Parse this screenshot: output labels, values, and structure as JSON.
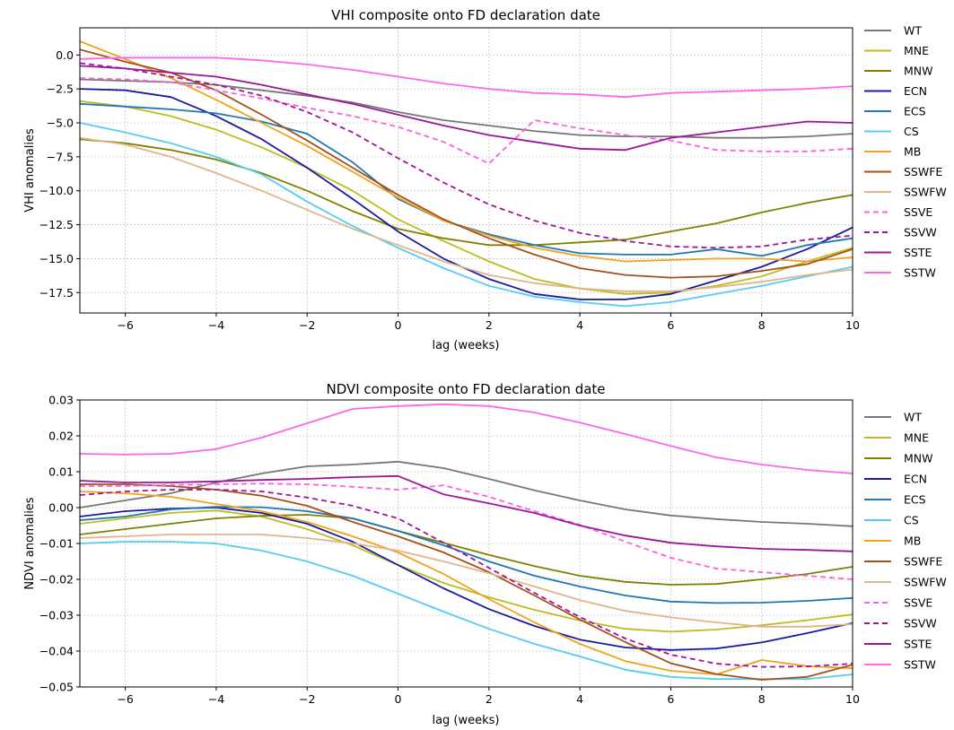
{
  "chart_data": [
    {
      "type": "line",
      "title": "VHI composite onto FD declaration date",
      "xlabel": "lag (weeks)",
      "ylabel": "VHI anomalies",
      "xlim": [
        -7,
        10
      ],
      "ylim": [
        -19,
        2
      ],
      "xticks": [
        -6,
        -4,
        -2,
        0,
        2,
        4,
        6,
        8,
        10
      ],
      "yticks": [
        0.0,
        -2.5,
        -5.0,
        -7.5,
        -10.0,
        -12.5,
        -15.0,
        -17.5
      ],
      "ytick_labels": [
        "0.0",
        "−2.5",
        "−5.0",
        "−7.5",
        "−10.0",
        "−12.5",
        "−15.0",
        "−17.5"
      ],
      "xtick_labels": [
        "−6",
        "−4",
        "−2",
        "0",
        "2",
        "4",
        "6",
        "8",
        "10"
      ],
      "grid": true,
      "legend_position": "outside-right",
      "x": [
        -7,
        -6,
        -5,
        -4,
        -3,
        -2,
        -1,
        0,
        1,
        2,
        3,
        4,
        5,
        6,
        7,
        8,
        9,
        10
      ],
      "series": [
        {
          "name": "WT",
          "color": "#777777",
          "dash": false,
          "values": [
            -1.8,
            -1.9,
            -2.0,
            -2.2,
            -2.6,
            -3.0,
            -3.5,
            -4.2,
            -4.8,
            -5.2,
            -5.6,
            -5.9,
            -6.0,
            -6.0,
            -6.1,
            -6.1,
            -6.0,
            -5.8
          ]
        },
        {
          "name": "MNE",
          "color": "#bcbd22",
          "dash": false,
          "values": [
            -3.4,
            -3.8,
            -4.5,
            -5.5,
            -6.8,
            -8.3,
            -10.0,
            -12.1,
            -13.7,
            -15.2,
            -16.5,
            -17.2,
            -17.6,
            -17.5,
            -17.0,
            -16.3,
            -15.2,
            -14.2
          ]
        },
        {
          "name": "MNW",
          "color": "#808000",
          "dash": false,
          "values": [
            -6.2,
            -6.5,
            -7.0,
            -7.7,
            -8.7,
            -10.0,
            -11.5,
            -12.8,
            -13.5,
            -14.0,
            -14.0,
            -13.8,
            -13.6,
            -13.0,
            -12.4,
            -11.6,
            -10.9,
            -10.3
          ]
        },
        {
          "name": "ECN",
          "color": "#1a1aa0",
          "dash": false,
          "values": [
            -2.5,
            -2.6,
            -3.1,
            -4.5,
            -6.2,
            -8.3,
            -10.6,
            -13.0,
            -15.0,
            -16.5,
            -17.6,
            -18.0,
            -18.0,
            -17.6,
            -16.6,
            -15.6,
            -14.3,
            -12.7
          ]
        },
        {
          "name": "ECS",
          "color": "#1f77b4",
          "dash": false,
          "values": [
            -3.6,
            -3.8,
            -4.0,
            -4.3,
            -4.9,
            -5.8,
            -7.9,
            -10.6,
            -12.2,
            -13.2,
            -14.0,
            -14.6,
            -14.7,
            -14.7,
            -14.3,
            -14.8,
            -14.0,
            -13.5
          ]
        },
        {
          "name": "CS",
          "color": "#56ccf2",
          "dash": false,
          "values": [
            -5.0,
            -5.7,
            -6.5,
            -7.5,
            -8.8,
            -10.8,
            -12.6,
            -14.2,
            -15.7,
            -17.0,
            -17.8,
            -18.2,
            -18.5,
            -18.2,
            -17.6,
            -17.0,
            -16.3,
            -15.6
          ]
        },
        {
          "name": "MB",
          "color": "#f0a21c",
          "dash": false,
          "values": [
            1.0,
            -0.3,
            -1.7,
            -3.3,
            -5.0,
            -6.7,
            -8.6,
            -10.5,
            -12.2,
            -13.3,
            -14.2,
            -14.8,
            -15.2,
            -15.1,
            -15.0,
            -15.0,
            -15.2,
            -14.9
          ]
        },
        {
          "name": "SSWFE",
          "color": "#a64f1a",
          "dash": false,
          "values": [
            0.4,
            -0.5,
            -1.3,
            -2.6,
            -4.4,
            -6.3,
            -8.3,
            -10.3,
            -12.1,
            -13.5,
            -14.7,
            -15.7,
            -16.2,
            -16.4,
            -16.3,
            -15.9,
            -15.4,
            -14.3
          ]
        },
        {
          "name": "SSWFW",
          "color": "#e2b48e",
          "dash": false,
          "values": [
            -6.1,
            -6.6,
            -7.5,
            -8.7,
            -10.0,
            -11.4,
            -12.8,
            -14.0,
            -15.2,
            -16.2,
            -16.8,
            -17.2,
            -17.4,
            -17.4,
            -17.1,
            -16.7,
            -16.2,
            -15.8
          ]
        },
        {
          "name": "SSVE",
          "color": "#ff5ee6",
          "dash": true,
          "values": [
            -1.7,
            -1.8,
            -2.0,
            -2.6,
            -3.2,
            -3.9,
            -4.5,
            -5.3,
            -6.4,
            -8.0,
            -4.8,
            -5.4,
            -5.9,
            -6.3,
            -7.0,
            -7.1,
            -7.1,
            -6.9
          ]
        },
        {
          "name": "SSVW",
          "color": "#a0159a",
          "dash": true,
          "values": [
            -0.6,
            -1.0,
            -1.6,
            -2.2,
            -3.0,
            -4.2,
            -5.7,
            -7.6,
            -9.4,
            -11.0,
            -12.2,
            -13.1,
            -13.7,
            -14.1,
            -14.2,
            -14.1,
            -13.6,
            -13.3
          ]
        },
        {
          "name": "SSTE",
          "color": "#9c159c",
          "dash": false,
          "values": [
            -0.8,
            -1.0,
            -1.3,
            -1.6,
            -2.2,
            -2.9,
            -3.6,
            -4.4,
            -5.2,
            -5.9,
            -6.4,
            -6.9,
            -7.0,
            -6.1,
            -5.7,
            -5.3,
            -4.9,
            -5.0
          ]
        },
        {
          "name": "SSTW",
          "color": "#ff66ee",
          "dash": false,
          "values": [
            -0.3,
            -0.2,
            -0.2,
            -0.2,
            -0.4,
            -0.7,
            -1.1,
            -1.6,
            -2.1,
            -2.5,
            -2.8,
            -2.9,
            -3.1,
            -2.8,
            -2.7,
            -2.6,
            -2.5,
            -2.3
          ]
        }
      ]
    },
    {
      "type": "line",
      "title": "NDVI composite onto FD declaration date",
      "xlabel": "lag (weeks)",
      "ylabel": "NDVI anomalies",
      "xlim": [
        -7,
        10
      ],
      "ylim": [
        -0.05,
        0.03
      ],
      "xticks": [
        -6,
        -4,
        -2,
        0,
        2,
        4,
        6,
        8,
        10
      ],
      "yticks": [
        0.03,
        0.02,
        0.01,
        0.0,
        -0.01,
        -0.02,
        -0.03,
        -0.04,
        -0.05
      ],
      "ytick_labels": [
        "0.03",
        "0.02",
        "0.01",
        "0.00",
        "−0.01",
        "−0.02",
        "−0.03",
        "−0.04",
        "−0.05"
      ],
      "xtick_labels": [
        "−6",
        "−4",
        "−2",
        "0",
        "2",
        "4",
        "6",
        "8",
        "10"
      ],
      "grid": true,
      "legend_position": "outside-right",
      "x": [
        -7,
        -6,
        -5,
        -4,
        -3,
        -2,
        -1,
        0,
        1,
        2,
        3,
        4,
        5,
        6,
        7,
        8,
        9,
        10
      ],
      "series": [
        {
          "name": "WT",
          "color": "#777777",
          "dash": false,
          "values": [
            0.0,
            0.002,
            0.004,
            0.007,
            0.0095,
            0.0115,
            0.012,
            0.0128,
            0.011,
            0.008,
            0.0048,
            0.002,
            -0.0005,
            -0.0022,
            -0.0032,
            -0.004,
            -0.0045,
            -0.0052
          ]
        },
        {
          "name": "MNE",
          "color": "#bcbd22",
          "dash": false,
          "values": [
            -0.0045,
            -0.003,
            -0.0015,
            -0.0008,
            -0.0025,
            -0.006,
            -0.0105,
            -0.016,
            -0.021,
            -0.025,
            -0.0285,
            -0.0315,
            -0.0338,
            -0.0346,
            -0.034,
            -0.0328,
            -0.0314,
            -0.0298
          ]
        },
        {
          "name": "MNW",
          "color": "#808000",
          "dash": false,
          "values": [
            -0.0075,
            -0.006,
            -0.0045,
            -0.003,
            -0.0023,
            -0.002,
            -0.003,
            -0.0065,
            -0.0098,
            -0.0132,
            -0.0163,
            -0.019,
            -0.0207,
            -0.0215,
            -0.0213,
            -0.02,
            -0.0185,
            -0.0165
          ]
        },
        {
          "name": "ECN",
          "color": "#1a1aa0",
          "dash": false,
          "values": [
            -0.0025,
            -0.001,
            -0.0003,
            0.0,
            -0.0015,
            -0.0045,
            -0.0095,
            -0.016,
            -0.0225,
            -0.0283,
            -0.033,
            -0.0368,
            -0.039,
            -0.0397,
            -0.0393,
            -0.0376,
            -0.035,
            -0.0322
          ]
        },
        {
          "name": "ECS",
          "color": "#1f77b4",
          "dash": false,
          "values": [
            -0.0035,
            -0.0025,
            -0.0005,
            0.0002,
            0.0001,
            -0.001,
            -0.003,
            -0.0065,
            -0.0105,
            -0.015,
            -0.019,
            -0.022,
            -0.0245,
            -0.0262,
            -0.0266,
            -0.0265,
            -0.026,
            -0.0252
          ]
        },
        {
          "name": "CS",
          "color": "#56ccf2",
          "dash": false,
          "values": [
            -0.01,
            -0.0095,
            -0.0095,
            -0.01,
            -0.012,
            -0.015,
            -0.019,
            -0.024,
            -0.029,
            -0.0338,
            -0.038,
            -0.0415,
            -0.0452,
            -0.0472,
            -0.0478,
            -0.0478,
            -0.0478,
            -0.0465
          ]
        },
        {
          "name": "MB",
          "color": "#f0a21c",
          "dash": false,
          "values": [
            0.0045,
            0.004,
            0.003,
            0.001,
            -0.001,
            -0.004,
            -0.008,
            -0.0125,
            -0.0185,
            -0.0255,
            -0.032,
            -0.038,
            -0.0428,
            -0.0455,
            -0.0465,
            -0.0425,
            -0.0442,
            -0.0448
          ]
        },
        {
          "name": "SSWFE",
          "color": "#a64f1a",
          "dash": false,
          "values": [
            0.0065,
            0.0065,
            0.006,
            0.005,
            0.0033,
            0.0005,
            -0.004,
            -0.008,
            -0.0125,
            -0.018,
            -0.0245,
            -0.0312,
            -0.0375,
            -0.0434,
            -0.0464,
            -0.048,
            -0.0472,
            -0.0438
          ]
        },
        {
          "name": "SSWFW",
          "color": "#e2b48e",
          "dash": false,
          "values": [
            -0.0085,
            -0.008,
            -0.0075,
            -0.0075,
            -0.0075,
            -0.0085,
            -0.01,
            -0.012,
            -0.015,
            -0.0183,
            -0.022,
            -0.0258,
            -0.0288,
            -0.0306,
            -0.032,
            -0.0332,
            -0.0332,
            -0.0325
          ]
        },
        {
          "name": "SSVE",
          "color": "#ff5ee6",
          "dash": true,
          "values": [
            0.006,
            0.006,
            0.0063,
            0.0065,
            0.0067,
            0.0065,
            0.0058,
            0.005,
            0.0062,
            0.003,
            -0.001,
            -0.0048,
            -0.0095,
            -0.014,
            -0.017,
            -0.018,
            -0.019,
            -0.02
          ]
        },
        {
          "name": "SSVW",
          "color": "#a0159a",
          "dash": true,
          "values": [
            0.0035,
            0.0045,
            0.005,
            0.005,
            0.0045,
            0.0028,
            0.0005,
            -0.003,
            -0.0098,
            -0.0168,
            -0.0238,
            -0.0305,
            -0.0365,
            -0.041,
            -0.0435,
            -0.0444,
            -0.0443,
            -0.0435
          ]
        },
        {
          "name": "SSTE",
          "color": "#9c159c",
          "dash": false,
          "values": [
            0.0075,
            0.007,
            0.007,
            0.0073,
            0.0077,
            0.008,
            0.0085,
            0.0088,
            0.0037,
            0.0012,
            -0.0015,
            -0.005,
            -0.0078,
            -0.0098,
            -0.0108,
            -0.0115,
            -0.0118,
            -0.0122
          ]
        },
        {
          "name": "SSTW",
          "color": "#ff66ee",
          "dash": false,
          "values": [
            0.015,
            0.0148,
            0.015,
            0.0163,
            0.0195,
            0.0235,
            0.0275,
            0.0283,
            0.0288,
            0.0283,
            0.0265,
            0.0237,
            0.0205,
            0.0172,
            0.014,
            0.012,
            0.0105,
            0.0095
          ]
        }
      ]
    }
  ]
}
